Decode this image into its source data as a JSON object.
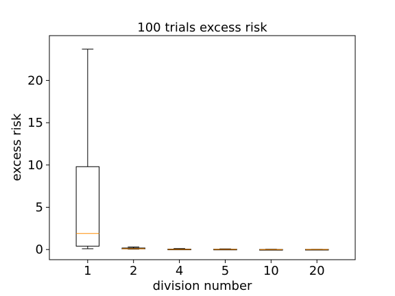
{
  "chart_data": {
    "type": "box",
    "title": "100 trials excess risk",
    "xlabel": "division number",
    "ylabel": "excess risk",
    "ylim": [
      -1.2,
      25.3
    ],
    "yticks": [
      0,
      5,
      10,
      15,
      20
    ],
    "grid": false,
    "colors": {
      "box": "#000000",
      "median": "#ff8c00",
      "background": "#ffffff"
    },
    "categories": [
      "1",
      "2",
      "4",
      "5",
      "10",
      "20"
    ],
    "boxes": [
      {
        "label": "1",
        "whisker_low": 0.1,
        "q1": 0.4,
        "median": 1.9,
        "q3": 9.8,
        "whisker_high": 23.7
      },
      {
        "label": "2",
        "whisker_low": 0.05,
        "q1": 0.08,
        "median": 0.1,
        "q3": 0.18,
        "whisker_high": 0.3
      },
      {
        "label": "4",
        "whisker_low": 0.0,
        "q1": 0.01,
        "median": 0.02,
        "q3": 0.05,
        "whisker_high": 0.12
      },
      {
        "label": "5",
        "whisker_low": 0.0,
        "q1": 0.01,
        "median": 0.02,
        "q3": 0.04,
        "whisker_high": 0.08
      },
      {
        "label": "10",
        "whisker_low": 0.0,
        "q1": 0.0,
        "median": 0.0,
        "q3": 0.01,
        "whisker_high": 0.04
      },
      {
        "label": "20",
        "whisker_low": 0.0,
        "q1": 0.01,
        "median": 0.01,
        "q3": 0.02,
        "whisker_high": 0.03
      }
    ]
  }
}
